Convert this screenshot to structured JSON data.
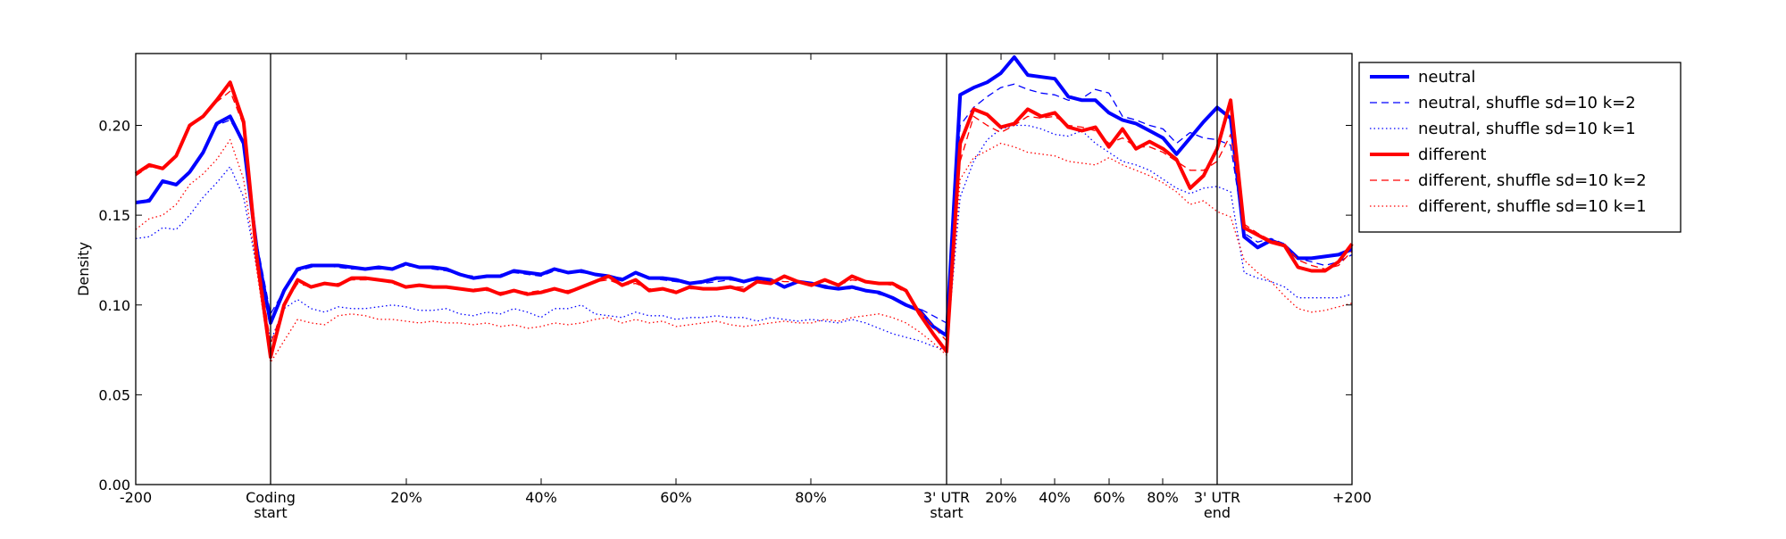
{
  "chart_data": {
    "type": "line",
    "ylabel": "Density",
    "ylim": [
      0.0,
      0.24
    ],
    "yticks": [
      "0.00",
      "0.05",
      "0.10",
      "0.15",
      "0.20"
    ],
    "xtick_labels": [
      "-200",
      "Coding\nstart",
      "20%",
      "40%",
      "60%",
      "80%",
      "3' UTR\nstart",
      "20%",
      "40%",
      "60%",
      "80%",
      "3' UTR\nend",
      "+200"
    ],
    "regions": [
      "5' flank (-200 to coding start)",
      "coding region (0-100%)",
      "3' UTR (0-100%)",
      "3' flank (end to +200)"
    ],
    "legend_position": "outside right, top",
    "grid": false,
    "series": [
      {
        "name": "neutral",
        "color": "#0000ff",
        "style": "solid-thick",
        "values": [
          0.157,
          0.158,
          0.169,
          0.167,
          0.174,
          0.185,
          0.201,
          0.205,
          0.19,
          0.13,
          0.09,
          0.108,
          0.12,
          0.122,
          0.122,
          0.122,
          0.121,
          0.12,
          0.121,
          0.12,
          0.123,
          0.121,
          0.121,
          0.12,
          0.117,
          0.115,
          0.116,
          0.116,
          0.119,
          0.118,
          0.117,
          0.12,
          0.118,
          0.119,
          0.117,
          0.116,
          0.114,
          0.118,
          0.115,
          0.115,
          0.114,
          0.112,
          0.113,
          0.115,
          0.115,
          0.113,
          0.115,
          0.114,
          0.11,
          0.113,
          0.112,
          0.11,
          0.109,
          0.11,
          0.108,
          0.107,
          0.104,
          0.1,
          0.097,
          0.088,
          0.083,
          0.217,
          0.221,
          0.224,
          0.229,
          0.238,
          0.228,
          0.227,
          0.226,
          0.216,
          0.214,
          0.214,
          0.207,
          0.203,
          0.201,
          0.197,
          0.193,
          0.184,
          0.193,
          0.202,
          0.21,
          0.204,
          0.138,
          0.132,
          0.136,
          0.133,
          0.126,
          0.126,
          0.127,
          0.128,
          0.131
        ]
      },
      {
        "name": "neutral, shuffle sd=10 k=2",
        "color": "#0000ff",
        "style": "dashed",
        "values": [
          0.157,
          0.159,
          0.168,
          0.167,
          0.173,
          0.184,
          0.2,
          0.203,
          0.19,
          0.134,
          0.095,
          0.108,
          0.119,
          0.121,
          0.122,
          0.121,
          0.12,
          0.12,
          0.12,
          0.12,
          0.122,
          0.121,
          0.12,
          0.119,
          0.117,
          0.116,
          0.116,
          0.117,
          0.118,
          0.117,
          0.116,
          0.119,
          0.118,
          0.118,
          0.117,
          0.116,
          0.115,
          0.117,
          0.115,
          0.114,
          0.113,
          0.112,
          0.112,
          0.113,
          0.114,
          0.113,
          0.114,
          0.113,
          0.111,
          0.113,
          0.112,
          0.111,
          0.109,
          0.109,
          0.108,
          0.106,
          0.104,
          0.1,
          0.098,
          0.094,
          0.09,
          0.2,
          0.21,
          0.216,
          0.221,
          0.223,
          0.22,
          0.218,
          0.217,
          0.214,
          0.215,
          0.22,
          0.218,
          0.205,
          0.203,
          0.2,
          0.198,
          0.19,
          0.196,
          0.193,
          0.192,
          0.189,
          0.14,
          0.135,
          0.137,
          0.134,
          0.126,
          0.124,
          0.122,
          0.124,
          0.128
        ]
      },
      {
        "name": "neutral, shuffle sd=10 k=1",
        "color": "#0000ff",
        "style": "dotted",
        "values": [
          0.137,
          0.138,
          0.143,
          0.142,
          0.15,
          0.16,
          0.168,
          0.177,
          0.16,
          0.12,
          0.08,
          0.098,
          0.103,
          0.098,
          0.096,
          0.099,
          0.098,
          0.098,
          0.099,
          0.1,
          0.099,
          0.097,
          0.097,
          0.098,
          0.095,
          0.094,
          0.096,
          0.095,
          0.098,
          0.096,
          0.093,
          0.098,
          0.098,
          0.1,
          0.095,
          0.094,
          0.093,
          0.096,
          0.094,
          0.094,
          0.092,
          0.093,
          0.093,
          0.094,
          0.093,
          0.093,
          0.091,
          0.093,
          0.092,
          0.091,
          0.092,
          0.091,
          0.09,
          0.092,
          0.09,
          0.087,
          0.084,
          0.082,
          0.08,
          0.077,
          0.075,
          0.16,
          0.18,
          0.192,
          0.198,
          0.2,
          0.2,
          0.198,
          0.195,
          0.194,
          0.197,
          0.19,
          0.185,
          0.18,
          0.178,
          0.175,
          0.17,
          0.165,
          0.162,
          0.165,
          0.166,
          0.163,
          0.118,
          0.115,
          0.113,
          0.11,
          0.104,
          0.104,
          0.104,
          0.104,
          0.106
        ]
      },
      {
        "name": "different",
        "color": "#ff0000",
        "style": "solid-thick",
        "values": [
          0.173,
          0.178,
          0.176,
          0.183,
          0.2,
          0.205,
          0.214,
          0.224,
          0.202,
          0.125,
          0.071,
          0.1,
          0.114,
          0.11,
          0.112,
          0.111,
          0.115,
          0.115,
          0.114,
          0.113,
          0.11,
          0.111,
          0.11,
          0.11,
          0.109,
          0.108,
          0.109,
          0.106,
          0.108,
          0.106,
          0.107,
          0.109,
          0.107,
          0.11,
          0.113,
          0.116,
          0.111,
          0.114,
          0.108,
          0.109,
          0.107,
          0.11,
          0.109,
          0.109,
          0.11,
          0.108,
          0.113,
          0.112,
          0.116,
          0.113,
          0.111,
          0.114,
          0.111,
          0.116,
          0.113,
          0.112,
          0.112,
          0.108,
          0.095,
          0.084,
          0.074,
          0.19,
          0.209,
          0.206,
          0.199,
          0.201,
          0.209,
          0.205,
          0.207,
          0.199,
          0.197,
          0.199,
          0.188,
          0.198,
          0.187,
          0.191,
          0.187,
          0.181,
          0.165,
          0.172,
          0.187,
          0.214,
          0.143,
          0.139,
          0.135,
          0.133,
          0.121,
          0.119,
          0.119,
          0.124,
          0.134
        ]
      },
      {
        "name": "different, shuffle sd=10 k=2",
        "color": "#ff0000",
        "style": "dashed",
        "values": [
          0.172,
          0.177,
          0.176,
          0.183,
          0.199,
          0.205,
          0.213,
          0.219,
          0.2,
          0.13,
          0.078,
          0.1,
          0.112,
          0.11,
          0.112,
          0.112,
          0.114,
          0.114,
          0.114,
          0.112,
          0.11,
          0.111,
          0.11,
          0.11,
          0.109,
          0.109,
          0.108,
          0.107,
          0.108,
          0.107,
          0.108,
          0.109,
          0.108,
          0.11,
          0.113,
          0.114,
          0.111,
          0.112,
          0.109,
          0.109,
          0.108,
          0.109,
          0.109,
          0.109,
          0.11,
          0.11,
          0.112,
          0.114,
          0.113,
          0.113,
          0.112,
          0.113,
          0.111,
          0.114,
          0.113,
          0.112,
          0.111,
          0.107,
          0.097,
          0.088,
          0.08,
          0.18,
          0.205,
          0.2,
          0.196,
          0.2,
          0.205,
          0.204,
          0.205,
          0.2,
          0.199,
          0.197,
          0.19,
          0.193,
          0.188,
          0.188,
          0.185,
          0.18,
          0.175,
          0.175,
          0.18,
          0.195,
          0.145,
          0.14,
          0.136,
          0.134,
          0.125,
          0.122,
          0.12,
          0.122,
          0.13
        ]
      },
      {
        "name": "different, shuffle sd=10 k=1",
        "color": "#ff0000",
        "style": "dotted",
        "values": [
          0.142,
          0.148,
          0.15,
          0.156,
          0.167,
          0.173,
          0.181,
          0.192,
          0.17,
          0.118,
          0.068,
          0.08,
          0.092,
          0.09,
          0.089,
          0.094,
          0.095,
          0.094,
          0.092,
          0.092,
          0.091,
          0.09,
          0.091,
          0.09,
          0.09,
          0.089,
          0.09,
          0.088,
          0.089,
          0.087,
          0.088,
          0.09,
          0.089,
          0.09,
          0.092,
          0.093,
          0.09,
          0.092,
          0.09,
          0.091,
          0.088,
          0.089,
          0.09,
          0.091,
          0.089,
          0.088,
          0.089,
          0.09,
          0.091,
          0.09,
          0.09,
          0.092,
          0.091,
          0.093,
          0.094,
          0.095,
          0.093,
          0.09,
          0.085,
          0.079,
          0.072,
          0.17,
          0.182,
          0.186,
          0.19,
          0.188,
          0.185,
          0.184,
          0.183,
          0.18,
          0.179,
          0.178,
          0.182,
          0.178,
          0.175,
          0.172,
          0.168,
          0.163,
          0.156,
          0.158,
          0.152,
          0.149,
          0.125,
          0.118,
          0.113,
          0.105,
          0.098,
          0.096,
          0.097,
          0.099,
          0.101
        ]
      }
    ]
  }
}
